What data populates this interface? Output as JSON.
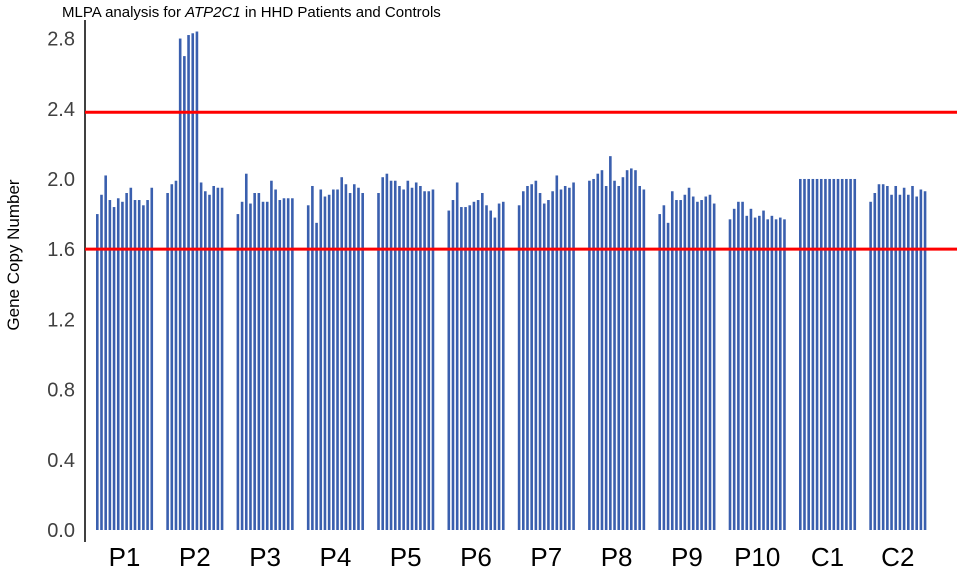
{
  "chart_data": {
    "type": "bar",
    "title": {
      "prefix": "MLPA analysis for ",
      "gene": "ATP2C1",
      "suffix": " in HHD Patients and Controls"
    },
    "xlabel": "",
    "ylabel": "Gene Copy Number",
    "ylim": [
      0.0,
      2.9
    ],
    "yticks": [
      "0.0",
      "0.4",
      "0.8",
      "1.2",
      "1.6",
      "2.0",
      "2.4",
      "2.8"
    ],
    "bar_color": "#3a5fae",
    "threshold_color": "#ff0000",
    "thresholds": [
      1.6,
      2.38
    ],
    "groups": [
      {
        "label": "P1",
        "values": [
          1.8,
          1.91,
          2.02,
          1.88,
          1.84,
          1.89,
          1.87,
          1.92,
          1.95,
          1.88,
          1.88,
          1.85,
          1.88,
          1.95
        ]
      },
      {
        "label": "P2",
        "values": [
          1.92,
          1.97,
          1.99,
          2.8,
          2.7,
          2.82,
          2.83,
          2.84,
          1.98,
          1.93,
          1.91,
          1.96,
          1.95,
          1.95
        ]
      },
      {
        "label": "P3",
        "values": [
          1.8,
          1.87,
          2.03,
          1.86,
          1.92,
          1.92,
          1.87,
          1.87,
          1.99,
          1.94,
          1.88,
          1.89,
          1.89,
          1.89
        ]
      },
      {
        "label": "P4",
        "values": [
          1.85,
          1.96,
          1.75,
          1.94,
          1.9,
          1.91,
          1.94,
          1.94,
          2.01,
          1.97,
          1.92,
          1.97,
          1.95,
          1.92
        ]
      },
      {
        "label": "P5",
        "values": [
          1.92,
          2.01,
          2.03,
          1.99,
          1.99,
          1.96,
          1.94,
          1.99,
          1.95,
          1.98,
          1.96,
          1.93,
          1.93,
          1.94
        ]
      },
      {
        "label": "P6",
        "values": [
          1.82,
          1.88,
          1.98,
          1.84,
          1.84,
          1.85,
          1.87,
          1.88,
          1.92,
          1.85,
          1.82,
          1.78,
          1.86,
          1.87
        ]
      },
      {
        "label": "P7",
        "values": [
          1.85,
          1.93,
          1.96,
          1.97,
          1.99,
          1.92,
          1.86,
          1.88,
          1.93,
          2.02,
          1.94,
          1.96,
          1.95,
          1.98
        ]
      },
      {
        "label": "P8",
        "values": [
          1.99,
          2.0,
          2.03,
          2.05,
          1.96,
          2.13,
          1.99,
          1.96,
          2.01,
          2.05,
          2.06,
          2.05,
          1.96,
          1.94
        ]
      },
      {
        "label": "P9",
        "values": [
          1.8,
          1.85,
          1.75,
          1.93,
          1.88,
          1.88,
          1.91,
          1.95,
          1.9,
          1.87,
          1.88,
          1.9,
          1.91,
          1.86
        ]
      },
      {
        "label": "P10",
        "values": [
          1.77,
          1.83,
          1.87,
          1.87,
          1.79,
          1.83,
          1.78,
          1.79,
          1.82,
          1.77,
          1.79,
          1.77,
          1.78,
          1.77
        ]
      },
      {
        "label": "C1",
        "values": [
          2.0,
          2.0,
          2.0,
          2.0,
          2.0,
          2.0,
          2.0,
          2.0,
          2.0,
          2.0,
          2.0,
          2.0,
          2.0,
          2.0
        ]
      },
      {
        "label": "C2",
        "values": [
          1.87,
          1.92,
          1.97,
          1.97,
          1.96,
          1.91,
          1.96,
          1.91,
          1.95,
          1.91,
          1.96,
          1.9,
          1.94,
          1.93
        ]
      }
    ],
    "grid": false,
    "legend": "none"
  }
}
